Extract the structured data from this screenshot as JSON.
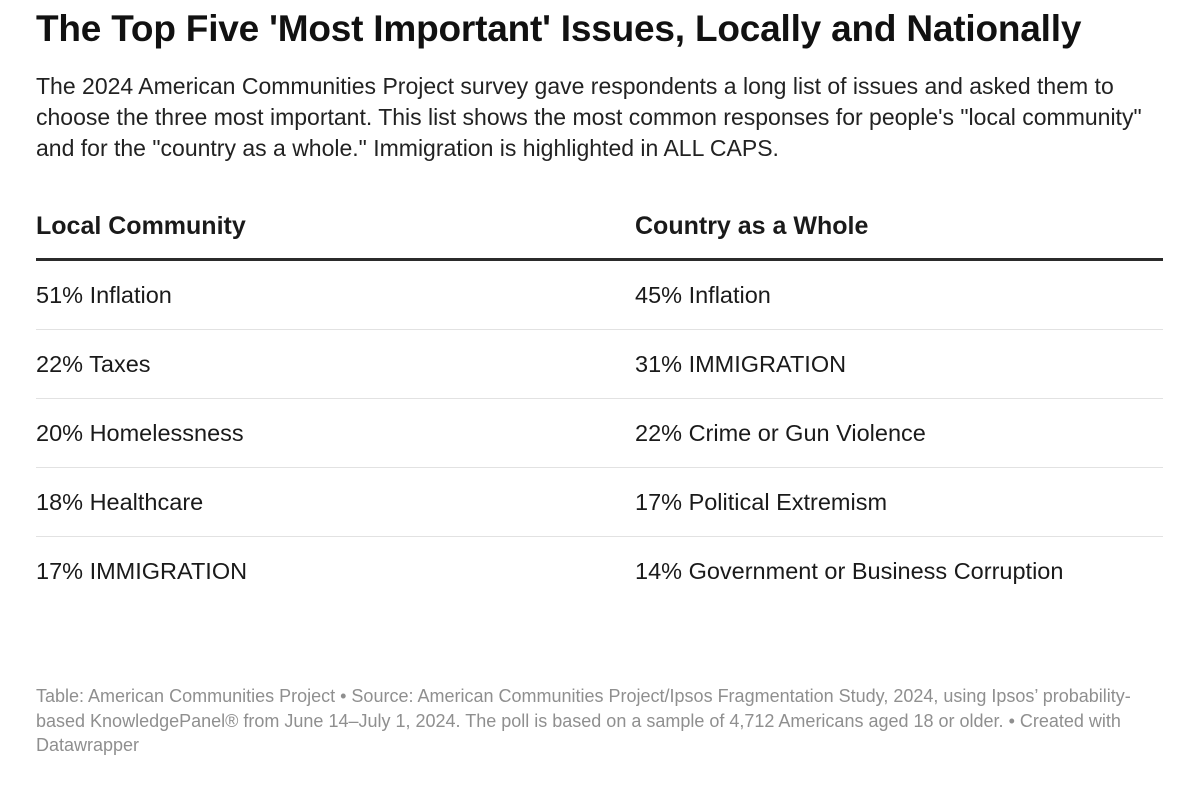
{
  "title": "The Top Five 'Most Important' Issues, Locally and Nationally",
  "subtitle": "The 2024 American Communities Project survey gave respondents a long list of issues and asked them to choose the three most important. This list shows the most common responses for people's \"local community\" and for the \"country as a whole.\" Immigration is highlighted in ALL CAPS.",
  "chart_data": {
    "type": "table",
    "columns": [
      "Local Community",
      "Country as a Whole"
    ],
    "rows": [
      [
        "51% Inflation",
        "45% Inflation"
      ],
      [
        "22% Taxes",
        "31% IMMIGRATION"
      ],
      [
        "20% Homelessness",
        "22% Crime or Gun Violence"
      ],
      [
        "18% Healthcare",
        "17% Political Extremism"
      ],
      [
        "17% IMMIGRATION",
        "14% Government or Business Corruption"
      ]
    ],
    "series": [
      {
        "name": "Local Community",
        "categories": [
          "Inflation",
          "Taxes",
          "Homelessness",
          "Healthcare",
          "IMMIGRATION"
        ],
        "values": [
          51,
          22,
          20,
          18,
          17
        ],
        "unit": "%"
      },
      {
        "name": "Country as a Whole",
        "categories": [
          "Inflation",
          "IMMIGRATION",
          "Crime or Gun Violence",
          "Political Extremism",
          "Government or Business Corruption"
        ],
        "values": [
          45,
          31,
          22,
          17,
          14
        ],
        "unit": "%"
      }
    ]
  },
  "footer": "Table: American Communities Project • Source: American Communities Project/Ipsos Fragmentation Study, 2024, using Ipsos’ probability-based KnowledgePanel® from June 14–July 1, 2024. The poll is based on a sample of 4,712 Americans aged 18 or older. • Created with Datawrapper"
}
